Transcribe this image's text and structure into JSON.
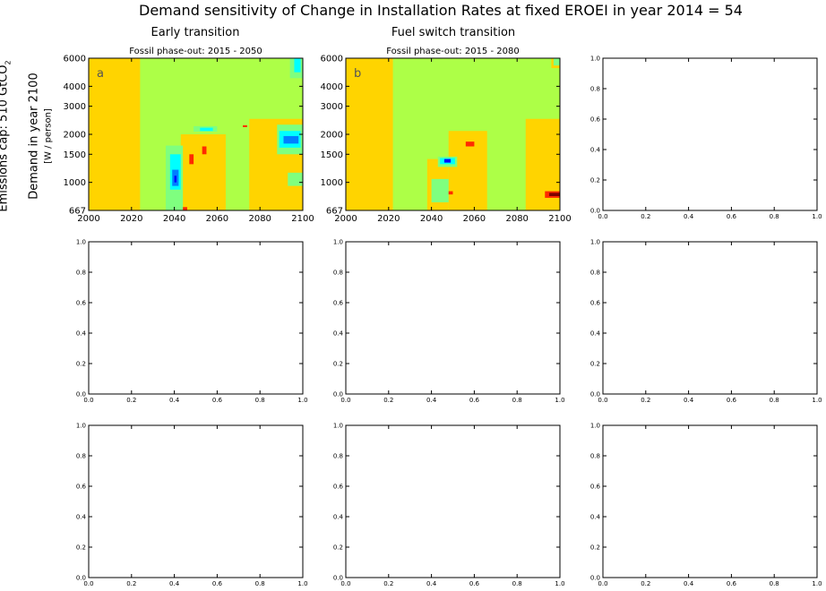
{
  "figure": {
    "title": "Demand sensitivity of Change in Installation Rates at fixed EROEI in year 2014 = 54",
    "row_label_outer": "Emissions cap: 510 GtCO",
    "row_label_outer_sub": "2",
    "row_label_mid": "Demand in year 2100",
    "row_label_inner": "[W / person]",
    "col_titles": [
      "Early transition",
      "Fuel switch transition"
    ]
  },
  "colors": {
    "background": "#ffffff",
    "levels": [
      "#00007f",
      "#0000ff",
      "#007fff",
      "#00ffff",
      "#7fff7f",
      "#adff47",
      "#ffd400",
      "#ff7f00",
      "#ff2a00",
      "#7f0000"
    ]
  },
  "chart_data": [
    {
      "type": "heatmap",
      "panel_letter": "a",
      "subtitle": "Fossil phase-out: 2015 - 2050",
      "xlim": [
        2000,
        2100
      ],
      "ylim": [
        667,
        6000
      ],
      "y_scale": "log",
      "xticks": [
        "2000",
        "2020",
        "2040",
        "2060",
        "2080",
        "2100"
      ],
      "yticks": [
        "667",
        "1000",
        "1500",
        "2000",
        "3000",
        "4000",
        "6000"
      ],
      "background_level": 5,
      "regions": [
        {
          "level": 6,
          "x": [
            2000,
            2024
          ],
          "y": [
            667,
            6000
          ]
        },
        {
          "level": 6,
          "x": [
            2043,
            2064
          ],
          "y": [
            667,
            2000
          ]
        },
        {
          "level": 4,
          "x": [
            2036,
            2044
          ],
          "y": [
            667,
            1700
          ]
        },
        {
          "level": 3,
          "x": [
            2038,
            2043
          ],
          "y": [
            900,
            1500
          ]
        },
        {
          "level": 2,
          "x": [
            2039,
            2042
          ],
          "y": [
            950,
            1200
          ]
        },
        {
          "level": 1,
          "x": [
            2040,
            2041
          ],
          "y": [
            1000,
            1100
          ]
        },
        {
          "level": 4,
          "x": [
            2049,
            2060
          ],
          "y": [
            2080,
            2250
          ]
        },
        {
          "level": 3,
          "x": [
            2052,
            2058
          ],
          "y": [
            2100,
            2200
          ]
        },
        {
          "level": 6,
          "x": [
            2075,
            2100
          ],
          "y": [
            667,
            2500
          ]
        },
        {
          "level": 4,
          "x": [
            2088,
            2100
          ],
          "y": [
            1500,
            2300
          ]
        },
        {
          "level": 3,
          "x": [
            2089,
            2099
          ],
          "y": [
            1650,
            2100
          ]
        },
        {
          "level": 2,
          "x": [
            2091,
            2098
          ],
          "y": [
            1750,
            1950
          ]
        },
        {
          "level": 4,
          "x": [
            2093,
            2100
          ],
          "y": [
            950,
            1150
          ]
        },
        {
          "level": 4,
          "x": [
            2094,
            2100
          ],
          "y": [
            4500,
            6000
          ]
        },
        {
          "level": 3,
          "x": [
            2096,
            2099
          ],
          "y": [
            4900,
            6000
          ]
        },
        {
          "level": 8,
          "x": [
            2044,
            2046
          ],
          "y": [
            667,
            700
          ]
        },
        {
          "level": 8,
          "x": [
            2053,
            2055
          ],
          "y": [
            1500,
            1680
          ]
        },
        {
          "level": 8,
          "x": [
            2047,
            2049
          ],
          "y": [
            1300,
            1500
          ]
        },
        {
          "level": 8,
          "x": [
            2072,
            2074
          ],
          "y": [
            2220,
            2280
          ]
        }
      ]
    },
    {
      "type": "heatmap",
      "panel_letter": "b",
      "subtitle": "Fossil phase-out: 2015 - 2080",
      "xlim": [
        2000,
        2100
      ],
      "ylim": [
        667,
        6000
      ],
      "y_scale": "log",
      "xticks": [
        "2000",
        "2020",
        "2040",
        "2060",
        "2080",
        "2100"
      ],
      "yticks": [
        "667",
        "1000",
        "1500",
        "2000",
        "3000",
        "4000",
        "6000"
      ],
      "background_level": 5,
      "regions": [
        {
          "level": 6,
          "x": [
            2000,
            2022
          ],
          "y": [
            667,
            6000
          ]
        },
        {
          "level": 6,
          "x": [
            2048,
            2066
          ],
          "y": [
            667,
            2100
          ]
        },
        {
          "level": 6,
          "x": [
            2038,
            2048
          ],
          "y": [
            667,
            1400
          ]
        },
        {
          "level": 4,
          "x": [
            2040,
            2048
          ],
          "y": [
            750,
            1050
          ]
        },
        {
          "level": 4,
          "x": [
            2043,
            2052
          ],
          "y": [
            1250,
            1450
          ]
        },
        {
          "level": 3,
          "x": [
            2044,
            2051
          ],
          "y": [
            1300,
            1420
          ]
        },
        {
          "level": 1,
          "x": [
            2046,
            2049
          ],
          "y": [
            1330,
            1400
          ]
        },
        {
          "level": 6,
          "x": [
            2084,
            2100
          ],
          "y": [
            667,
            2500
          ]
        },
        {
          "level": 6,
          "x": [
            2096,
            2100
          ],
          "y": [
            5200,
            6000
          ]
        },
        {
          "level": 4,
          "x": [
            2097,
            2100
          ],
          "y": [
            5400,
            6000
          ]
        },
        {
          "level": 8,
          "x": [
            2093,
            2100
          ],
          "y": [
            800,
            880
          ]
        },
        {
          "level": 9,
          "x": [
            2095,
            2100
          ],
          "y": [
            820,
            860
          ]
        },
        {
          "level": 8,
          "x": [
            2056,
            2060
          ],
          "y": [
            1680,
            1800
          ]
        },
        {
          "level": 8,
          "x": [
            2048,
            2050
          ],
          "y": [
            840,
            880
          ]
        }
      ]
    },
    {
      "type": "empty",
      "xlim": [
        0,
        1
      ],
      "ylim": [
        0,
        1
      ],
      "xticks": [
        "0.0",
        "0.2",
        "0.4",
        "0.6",
        "0.8",
        "1.0"
      ],
      "yticks": [
        "0.0",
        "0.2",
        "0.4",
        "0.6",
        "0.8",
        "1.0"
      ]
    },
    {
      "type": "empty",
      "xlim": [
        0,
        1
      ],
      "ylim": [
        0,
        1
      ],
      "xticks": [
        "0.0",
        "0.2",
        "0.4",
        "0.6",
        "0.8",
        "1.0"
      ],
      "yticks": [
        "0.0",
        "0.2",
        "0.4",
        "0.6",
        "0.8",
        "1.0"
      ]
    },
    {
      "type": "empty",
      "xlim": [
        0,
        1
      ],
      "ylim": [
        0,
        1
      ],
      "xticks": [
        "0.0",
        "0.2",
        "0.4",
        "0.6",
        "0.8",
        "1.0"
      ],
      "yticks": [
        "0.0",
        "0.2",
        "0.4",
        "0.6",
        "0.8",
        "1.0"
      ]
    },
    {
      "type": "empty",
      "xlim": [
        0,
        1
      ],
      "ylim": [
        0,
        1
      ],
      "xticks": [
        "0.0",
        "0.2",
        "0.4",
        "0.6",
        "0.8",
        "1.0"
      ],
      "yticks": [
        "0.0",
        "0.2",
        "0.4",
        "0.6",
        "0.8",
        "1.0"
      ]
    },
    {
      "type": "empty",
      "xlim": [
        0,
        1
      ],
      "ylim": [
        0,
        1
      ],
      "xticks": [
        "0.0",
        "0.2",
        "0.4",
        "0.6",
        "0.8",
        "1.0"
      ],
      "yticks": [
        "0.0",
        "0.2",
        "0.4",
        "0.6",
        "0.8",
        "1.0"
      ]
    },
    {
      "type": "empty",
      "xlim": [
        0,
        1
      ],
      "ylim": [
        0,
        1
      ],
      "xticks": [
        "0.0",
        "0.2",
        "0.4",
        "0.6",
        "0.8",
        "1.0"
      ],
      "yticks": [
        "0.0",
        "0.2",
        "0.4",
        "0.6",
        "0.8",
        "1.0"
      ]
    },
    {
      "type": "empty",
      "xlim": [
        0,
        1
      ],
      "ylim": [
        0,
        1
      ],
      "xticks": [
        "0.0",
        "0.2",
        "0.4",
        "0.6",
        "0.8",
        "1.0"
      ],
      "yticks": [
        "0.0",
        "0.2",
        "0.4",
        "0.6",
        "0.8",
        "1.0"
      ]
    }
  ]
}
